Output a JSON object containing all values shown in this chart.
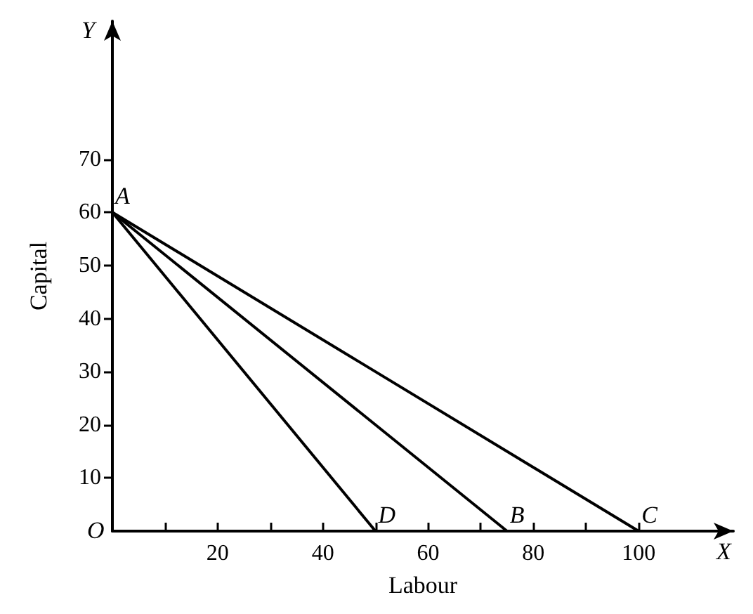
{
  "chart_data": {
    "type": "line",
    "xlabel": "Labour",
    "ylabel": "Capital",
    "xlim": [
      0,
      118
    ],
    "ylim": [
      0,
      96
    ],
    "xticks": [
      {
        "value": 10,
        "label": null
      },
      20,
      {
        "value": 30,
        "label": null
      },
      40,
      {
        "value": 50,
        "label": null
      },
      60,
      {
        "value": 70,
        "label": null
      },
      80,
      {
        "value": 90,
        "label": null
      },
      100
    ],
    "yticks": [
      10,
      20,
      30,
      40,
      50,
      60,
      70
    ],
    "series": [
      {
        "color": "#000000",
        "x": [
          0,
          50
        ],
        "values": [
          60,
          0
        ]
      },
      {
        "color": "#000000",
        "x": [
          0,
          75
        ],
        "values": [
          60,
          0
        ]
      },
      {
        "color": "#000000",
        "x": [
          0,
          100
        ],
        "values": [
          60,
          0
        ]
      }
    ],
    "annotations": [
      "Y",
      "X",
      "O",
      {
        "text": "A",
        "x": 0,
        "y": 60
      },
      {
        "text": "D",
        "x": 50,
        "y": 0
      },
      {
        "text": "B",
        "x": 75,
        "y": 0
      },
      {
        "text": "C",
        "x": 100,
        "y": 0
      }
    ],
    "marker": "none",
    "line_style": "solid"
  }
}
